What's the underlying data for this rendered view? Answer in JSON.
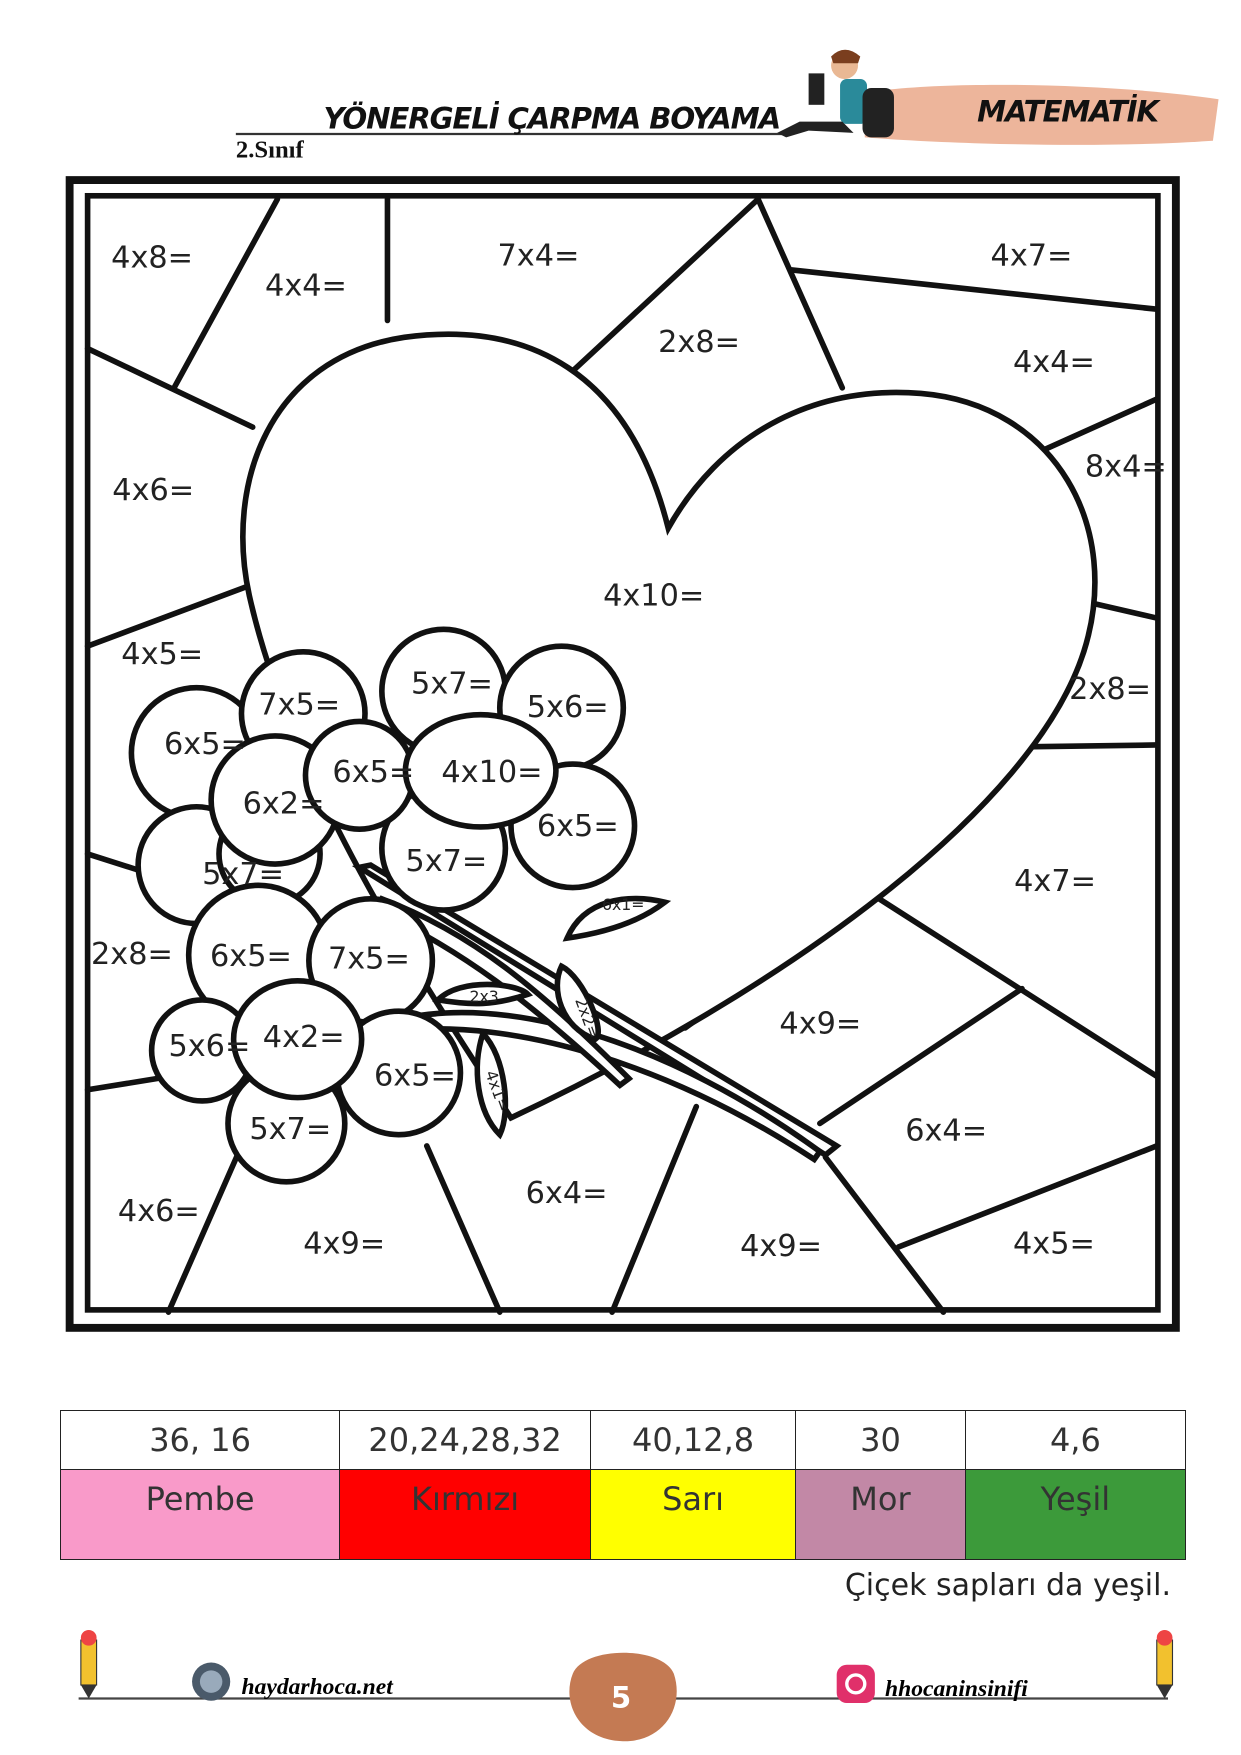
{
  "header": {
    "title": "YÖNERGELİ ÇARPMA BOYAMA",
    "grade": "2.Sınıf",
    "subject": "MATEMATİK"
  },
  "coloring": {
    "labels": [
      "4x8=",
      "4x4=",
      "7x4=",
      "4x7=",
      "2x8=",
      "4x4=",
      "8x4=",
      "4x6=",
      "4x10=",
      "4x5=",
      "2x8=",
      "7x5=",
      "5x7=",
      "5x6=",
      "6x5=",
      "6x5=",
      "4x10=",
      "6x2=",
      "6x5=",
      "5x7=",
      "5x7=",
      "4x7=",
      "6x1=",
      "2x8=",
      "6x5=",
      "7x5=",
      "2x3",
      "2x2=",
      "4x9=",
      "5x6=",
      "4x2=",
      "6x5=",
      "4x1=",
      "6x4=",
      "5x7=",
      "4x6=",
      "6x4=",
      "4x9=",
      "4x9=",
      "4x5="
    ]
  },
  "key": {
    "columns": [
      {
        "numbers": "36, 16",
        "color_name": "Pembe",
        "color": "#f99ac9"
      },
      {
        "numbers": "20,24,28,32",
        "color_name": "Kırmızı",
        "color": "#ff0000"
      },
      {
        "numbers": "40,12,8",
        "color_name": "Sarı",
        "color": "#ffff00"
      },
      {
        "numbers": "30",
        "color_name": "Mor",
        "color": "#c288a6"
      },
      {
        "numbers": "4,6",
        "color_name": "Yeşil",
        "color": "#3c9a3a"
      }
    ],
    "note": "Çiçek sapları da yeşil."
  },
  "footer": {
    "website": "haydarhoca.net",
    "page_number": "5",
    "instagram": "hhocaninsinifi",
    "page_badge_color": "#c47a53"
  }
}
